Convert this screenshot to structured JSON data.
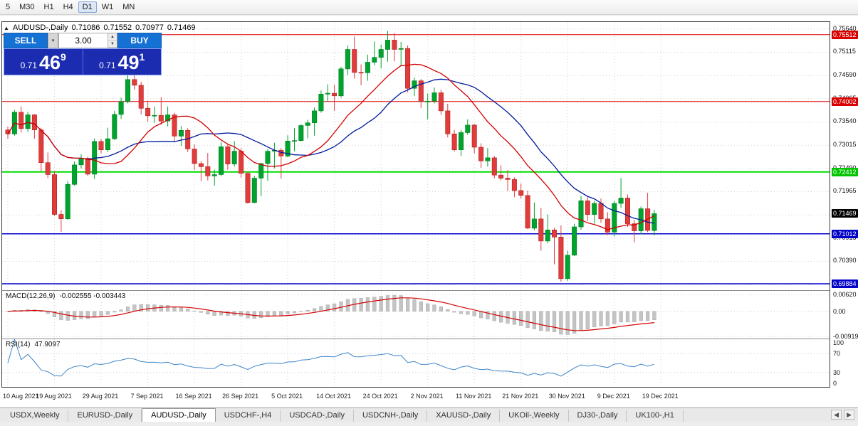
{
  "toolbar": {
    "timeframes": [
      "5",
      "M30",
      "H1",
      "H4",
      "D1",
      "W1",
      "MN"
    ],
    "active": "D1"
  },
  "icons": {
    "chart_icon": "▲",
    "volume_dropdown_icon": "▾",
    "spinner_up_icon": "▲",
    "spinner_down_icon": "▼",
    "tabs_left_icon": "◀",
    "tabs_right_icon": "▶"
  },
  "chart": {
    "title": "AUDUSD-,Daily",
    "ohlc": {
      "open": "0.71086",
      "high": "0.71552",
      "low": "0.70977",
      "close": "0.71469"
    }
  },
  "trade_panel": {
    "sell_label": "SELL",
    "buy_label": "BUY",
    "volume": "3.00",
    "sell_price": {
      "small": "0.71",
      "big": "46",
      "sup": "9"
    },
    "buy_price": {
      "small": "0.71",
      "big": "49",
      "sup": "1"
    }
  },
  "chart_data": {
    "type": "candlestick",
    "symbol": "AUDUSD-",
    "timeframe": "Daily",
    "x_labels": [
      "10 Aug 2021",
      "19 Aug 2021",
      "29 Aug 2021",
      "7 Sep 2021",
      "16 Sep 2021",
      "26 Sep 2021",
      "5 Oct 2021",
      "14 Oct 2021",
      "24 Oct 2021",
      "2 Nov 2021",
      "11 Nov 2021",
      "21 Nov 2021",
      "30 Nov 2021",
      "9 Dec 2021",
      "19 Dec 2021"
    ],
    "y_axis": {
      "min": 0.69739,
      "max": 0.75798,
      "ticks": [
        0.7564,
        0.75115,
        0.7459,
        0.74065,
        0.7354,
        0.73015,
        0.7249,
        0.71965,
        0.7144,
        0.70915,
        0.7039,
        0.69865
      ]
    },
    "candles": [
      [
        0.7336,
        0.7344,
        0.7316,
        0.7327
      ],
      [
        0.7327,
        0.7381,
        0.7323,
        0.7376
      ],
      [
        0.7376,
        0.7389,
        0.733,
        0.7339
      ],
      [
        0.7339,
        0.7377,
        0.7332,
        0.737
      ],
      [
        0.737,
        0.7372,
        0.7316,
        0.7336
      ],
      [
        0.7336,
        0.7341,
        0.7242,
        0.7262
      ],
      [
        0.7262,
        0.7285,
        0.7227,
        0.7235
      ],
      [
        0.7235,
        0.7243,
        0.7142,
        0.7145
      ],
      [
        0.7145,
        0.7154,
        0.7106,
        0.7135
      ],
      [
        0.7135,
        0.722,
        0.7133,
        0.7213
      ],
      [
        0.7213,
        0.7265,
        0.721,
        0.7257
      ],
      [
        0.7257,
        0.7281,
        0.7249,
        0.7272
      ],
      [
        0.7272,
        0.7276,
        0.7232,
        0.7236
      ],
      [
        0.7236,
        0.7317,
        0.7225,
        0.731
      ],
      [
        0.731,
        0.7316,
        0.7283,
        0.7291
      ],
      [
        0.7291,
        0.7341,
        0.7286,
        0.7316
      ],
      [
        0.7316,
        0.7379,
        0.7313,
        0.7371
      ],
      [
        0.7371,
        0.7409,
        0.7361,
        0.74
      ],
      [
        0.74,
        0.7478,
        0.7396,
        0.745
      ],
      [
        0.745,
        0.7462,
        0.7427,
        0.7437
      ],
      [
        0.7437,
        0.7445,
        0.7371,
        0.7385
      ],
      [
        0.7385,
        0.7402,
        0.7355,
        0.7368
      ],
      [
        0.7368,
        0.7389,
        0.7352,
        0.7369
      ],
      [
        0.7369,
        0.741,
        0.7348,
        0.7356
      ],
      [
        0.7356,
        0.7389,
        0.7344,
        0.737
      ],
      [
        0.737,
        0.7375,
        0.731,
        0.7322
      ],
      [
        0.7322,
        0.7345,
        0.73,
        0.7335
      ],
      [
        0.7335,
        0.734,
        0.7286,
        0.7293
      ],
      [
        0.7293,
        0.7303,
        0.7246,
        0.726
      ],
      [
        0.726,
        0.7266,
        0.722,
        0.7253
      ],
      [
        0.7253,
        0.7284,
        0.7222,
        0.7232
      ],
      [
        0.7232,
        0.7246,
        0.721,
        0.7235
      ],
      [
        0.7235,
        0.7309,
        0.7232,
        0.7298
      ],
      [
        0.7298,
        0.7304,
        0.7246,
        0.7259
      ],
      [
        0.7259,
        0.7311,
        0.7253,
        0.7288
      ],
      [
        0.7288,
        0.7295,
        0.7228,
        0.7238
      ],
      [
        0.7238,
        0.7242,
        0.7169,
        0.7172
      ],
      [
        0.7172,
        0.7232,
        0.717,
        0.7227
      ],
      [
        0.7227,
        0.7262,
        0.7186,
        0.726
      ],
      [
        0.726,
        0.7293,
        0.7221,
        0.7288
      ],
      [
        0.7288,
        0.7307,
        0.7249,
        0.729
      ],
      [
        0.729,
        0.7295,
        0.7226,
        0.7277
      ],
      [
        0.7277,
        0.7324,
        0.7274,
        0.7311
      ],
      [
        0.7311,
        0.734,
        0.7288,
        0.7312
      ],
      [
        0.7312,
        0.7349,
        0.731,
        0.7346
      ],
      [
        0.7346,
        0.7359,
        0.7317,
        0.7352
      ],
      [
        0.7352,
        0.7387,
        0.7323,
        0.7379
      ],
      [
        0.7379,
        0.7425,
        0.7375,
        0.7417
      ],
      [
        0.7417,
        0.7439,
        0.74,
        0.7419
      ],
      [
        0.7419,
        0.7438,
        0.7379,
        0.7413
      ],
      [
        0.7413,
        0.7479,
        0.7409,
        0.7474
      ],
      [
        0.7474,
        0.7527,
        0.746,
        0.7518
      ],
      [
        0.7518,
        0.7547,
        0.7452,
        0.7466
      ],
      [
        0.7466,
        0.7484,
        0.7437,
        0.7465
      ],
      [
        0.7465,
        0.7506,
        0.7447,
        0.7489
      ],
      [
        0.7489,
        0.7536,
        0.7482,
        0.75
      ],
      [
        0.75,
        0.7529,
        0.7475,
        0.7518
      ],
      [
        0.7518,
        0.756,
        0.749,
        0.7539
      ],
      [
        0.7539,
        0.7555,
        0.7491,
        0.7518
      ],
      [
        0.7518,
        0.7535,
        0.7482,
        0.752
      ],
      [
        0.752,
        0.7527,
        0.7421,
        0.743
      ],
      [
        0.743,
        0.7455,
        0.7412,
        0.7447
      ],
      [
        0.7447,
        0.7451,
        0.7385,
        0.74
      ],
      [
        0.74,
        0.7418,
        0.736,
        0.7401
      ],
      [
        0.7401,
        0.7432,
        0.7396,
        0.742
      ],
      [
        0.742,
        0.7427,
        0.737,
        0.7379
      ],
      [
        0.7379,
        0.7395,
        0.7319,
        0.7327
      ],
      [
        0.7327,
        0.7336,
        0.7287,
        0.7291
      ],
      [
        0.7291,
        0.7336,
        0.7277,
        0.733
      ],
      [
        0.733,
        0.736,
        0.7325,
        0.7347
      ],
      [
        0.7347,
        0.735,
        0.7283,
        0.7297
      ],
      [
        0.7297,
        0.7306,
        0.725,
        0.7266
      ],
      [
        0.7266,
        0.7295,
        0.7253,
        0.7273
      ],
      [
        0.7273,
        0.7277,
        0.7227,
        0.7234
      ],
      [
        0.7234,
        0.7256,
        0.7222,
        0.7227
      ],
      [
        0.7227,
        0.7245,
        0.7198,
        0.7224
      ],
      [
        0.7224,
        0.7229,
        0.7184,
        0.7199
      ],
      [
        0.7199,
        0.7215,
        0.7181,
        0.7188
      ],
      [
        0.7188,
        0.7199,
        0.7112,
        0.7114
      ],
      [
        0.7114,
        0.7172,
        0.7109,
        0.7135
      ],
      [
        0.7135,
        0.716,
        0.7063,
        0.7085
      ],
      [
        0.7085,
        0.7145,
        0.708,
        0.711
      ],
      [
        0.711,
        0.7115,
        0.7032,
        0.7094
      ],
      [
        0.7094,
        0.712,
        0.6993,
        0.7
      ],
      [
        0.7,
        0.7063,
        0.6995,
        0.7053
      ],
      [
        0.7053,
        0.7124,
        0.7051,
        0.7117
      ],
      [
        0.7117,
        0.7187,
        0.711,
        0.7176
      ],
      [
        0.7176,
        0.7185,
        0.713,
        0.7145
      ],
      [
        0.7145,
        0.7176,
        0.7124,
        0.717
      ],
      [
        0.717,
        0.7181,
        0.7126,
        0.7135
      ],
      [
        0.7135,
        0.715,
        0.7098,
        0.7105
      ],
      [
        0.7105,
        0.7176,
        0.7095,
        0.717
      ],
      [
        0.717,
        0.7227,
        0.716,
        0.7182
      ],
      [
        0.7182,
        0.719,
        0.7117,
        0.7124
      ],
      [
        0.7124,
        0.7133,
        0.7082,
        0.7108
      ],
      [
        0.7108,
        0.7163,
        0.71,
        0.7158
      ],
      [
        0.7158,
        0.7194,
        0.7105,
        0.7109
      ],
      [
        0.71086,
        0.71552,
        0.70977,
        0.71469
      ]
    ],
    "overlays": {
      "ma_fast": {
        "type": "SMA",
        "period": 13,
        "color": "#d40000"
      },
      "ma_slow": {
        "type": "SMA",
        "period": 21,
        "color": "#001a9e"
      }
    },
    "hlines": [
      {
        "price": 0.75512,
        "color": "#e00000",
        "width": 1
      },
      {
        "price": 0.74002,
        "color": "#e00000",
        "width": 1
      },
      {
        "price": 0.72412,
        "color": "#00dd00",
        "width": 2
      },
      {
        "price": 0.71012,
        "color": "#0000d0",
        "width": 1.5
      },
      {
        "price": 0.69884,
        "color": "#0000d0",
        "width": 1.5
      }
    ],
    "price_badges": [
      {
        "price": 0.75512,
        "label": "0.75512",
        "bg": "#d80000"
      },
      {
        "price": 0.74002,
        "label": "0.74002",
        "bg": "#d80000"
      },
      {
        "price": 0.72412,
        "label": "0.72412",
        "bg": "#00c400"
      },
      {
        "price": 0.71469,
        "label": "0.71469",
        "bg": "#000000"
      },
      {
        "price": 0.71012,
        "label": "0.71012",
        "bg": "#0000c8"
      },
      {
        "price": 0.69884,
        "label": "0.69884",
        "bg": "#0000c8"
      }
    ],
    "macd": {
      "label": "MACD(12,26,9)",
      "values": "-0.002555 -0.003443",
      "range": [
        -0.01,
        0.0075
      ],
      "axis": [
        {
          "v": 0.0062,
          "label": "0.00620"
        },
        {
          "v": 0,
          "label": "0.00"
        },
        {
          "v": -0.00919,
          "label": "-0.00919"
        }
      ],
      "histogram_color": "#c4c4c4",
      "signal_color": "#d40000"
    },
    "rsi": {
      "label": "RSI(14)",
      "value": "47.9097",
      "color": "#3d85c8",
      "levels": [
        70,
        30
      ],
      "axis": [
        {
          "v": 100,
          "label": "100"
        },
        {
          "v": 70,
          "label": "70"
        },
        {
          "v": 30,
          "label": "30"
        },
        {
          "v": 0,
          "label": "0"
        }
      ]
    }
  },
  "tabs": {
    "items": [
      "USDX,Weekly",
      "EURUSD-,Daily",
      "AUDUSD-,Daily",
      "USDCHF-,H4",
      "USDCAD-,Daily",
      "USDCNH-,Daily",
      "XAUUSD-,Daily",
      "UKOil-,Weekly",
      "DJ30-,Daily",
      "UK100-,H1"
    ],
    "active_index": 2
  }
}
